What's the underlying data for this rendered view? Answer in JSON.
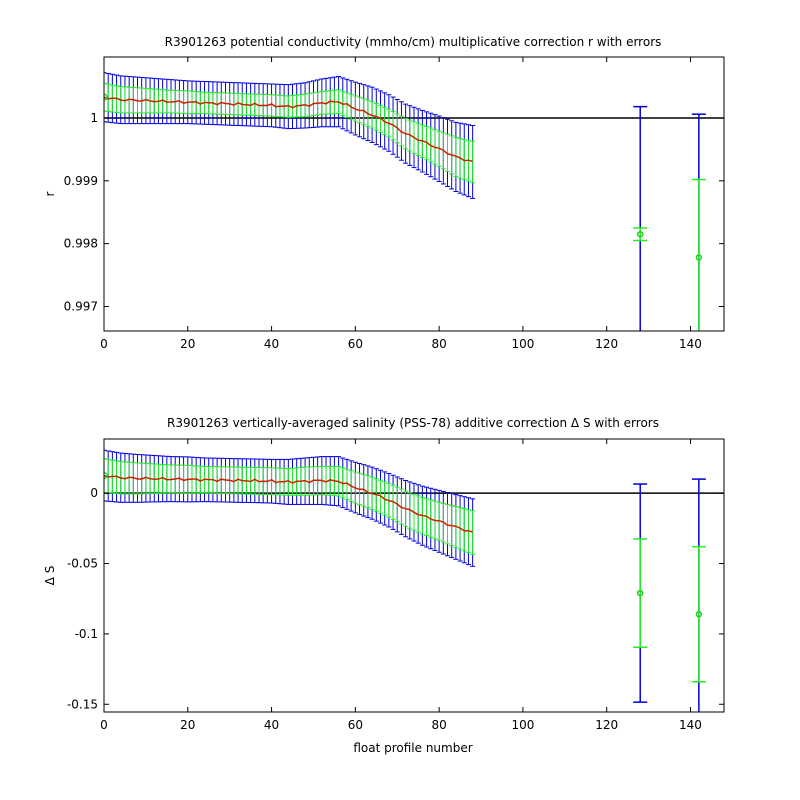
{
  "chart_data": [
    {
      "type": "line",
      "title": "R3901263 potential conductivity (mmho/cm) multiplicative correction r with errors",
      "ylabel": "r",
      "xlabel": "",
      "xlim": [
        0,
        148
      ],
      "ylim": [
        0.99661,
        1.00097
      ],
      "xticks": [
        "0",
        "20",
        "40",
        "60",
        "80",
        "100",
        "120",
        "140"
      ],
      "yticks": [
        "0.997",
        "0.998",
        "0.999",
        "1"
      ],
      "reference_line": 1,
      "colors": {
        "outer_error": "#0000dd",
        "inner_error": "#22ee22",
        "fit_line": "#cc2200",
        "marker": "#22cc22",
        "reference": "#000000"
      },
      "x": [
        0,
        4,
        8,
        12,
        16,
        20,
        24,
        28,
        32,
        36,
        40,
        44,
        48,
        52,
        56,
        60,
        64,
        68,
        72,
        76,
        80,
        84,
        88
      ],
      "fit": [
        1.00033,
        1.00029,
        1.00028,
        1.00027,
        1.00026,
        1.00025,
        1.00024,
        1.00023,
        1.00022,
        1.00021,
        1.0002,
        1.00018,
        1.0002,
        1.00024,
        1.00026,
        1.00015,
        1.00005,
        0.99992,
        0.99975,
        0.99963,
        0.99951,
        0.99938,
        0.9993
      ],
      "inner_halfwidth": [
        0.00022,
        0.00021,
        0.0002,
        0.00019,
        0.00018,
        0.00018,
        0.00017,
        0.00017,
        0.00017,
        0.00017,
        0.00017,
        0.00017,
        0.00018,
        0.00018,
        0.00019,
        0.0002,
        0.00021,
        0.00022,
        0.00024,
        0.00026,
        0.00028,
        0.00031,
        0.00033
      ],
      "outer_halfwidth": [
        0.00039,
        0.00038,
        0.00037,
        0.00036,
        0.00035,
        0.00034,
        0.00034,
        0.00034,
        0.00034,
        0.00034,
        0.00034,
        0.00035,
        0.00036,
        0.00038,
        0.0004,
        0.00042,
        0.00044,
        0.00045,
        0.00047,
        0.00049,
        0.00052,
        0.00055,
        0.00058
      ],
      "series": [
        {
          "x": 128,
          "y": 0.99815,
          "inner_err": 0.0001,
          "outer_err": 0.00203
        },
        {
          "x": 142,
          "y": 0.99778,
          "inner_err": 0.00124,
          "outer_err": 0.00228
        }
      ]
    },
    {
      "type": "line",
      "title": "R3901263 vertically-averaged salinity (PSS-78) additive correction Δ S with errors",
      "ylabel": "Δ S",
      "xlabel": "float profile number",
      "xlim": [
        0,
        148
      ],
      "ylim": [
        -0.1555,
        0.0385
      ],
      "xticks": [
        "0",
        "20",
        "40",
        "60",
        "80",
        "100",
        "120",
        "140"
      ],
      "yticks": [
        "-0.15",
        "-0.1",
        "-0.05",
        "0"
      ],
      "reference_line": 0,
      "colors": {
        "outer_error": "#0000dd",
        "inner_error": "#22ee22",
        "fit_line": "#cc2200",
        "marker": "#22cc22",
        "reference": "#000000"
      },
      "x": [
        0,
        4,
        8,
        12,
        16,
        20,
        24,
        28,
        32,
        36,
        40,
        44,
        48,
        52,
        56,
        60,
        64,
        68,
        72,
        76,
        80,
        84,
        88
      ],
      "fit": [
        0.0125,
        0.011,
        0.0105,
        0.0103,
        0.01,
        0.0098,
        0.0095,
        0.0093,
        0.009,
        0.0088,
        0.0085,
        0.008,
        0.0085,
        0.009,
        0.0085,
        0.004,
        0.0,
        -0.005,
        -0.011,
        -0.016,
        -0.02,
        -0.024,
        -0.028
      ],
      "inner_halfwidth": [
        0.012,
        0.0115,
        0.011,
        0.0105,
        0.01,
        0.01,
        0.0095,
        0.0095,
        0.0095,
        0.0095,
        0.0095,
        0.0095,
        0.01,
        0.01,
        0.0105,
        0.011,
        0.0115,
        0.012,
        0.0125,
        0.013,
        0.0135,
        0.0145,
        0.0155
      ],
      "outer_halfwidth": [
        0.018,
        0.0175,
        0.017,
        0.0165,
        0.016,
        0.016,
        0.0155,
        0.0155,
        0.0155,
        0.0155,
        0.0155,
        0.016,
        0.0165,
        0.017,
        0.0175,
        0.018,
        0.0185,
        0.019,
        0.02,
        0.021,
        0.022,
        0.023,
        0.024
      ],
      "series": [
        {
          "x": 128,
          "y": -0.071,
          "inner_err": 0.0385,
          "outer_err": 0.0775
        },
        {
          "x": 142,
          "y": -0.086,
          "inner_err": 0.048,
          "outer_err": 0.096
        }
      ]
    }
  ]
}
